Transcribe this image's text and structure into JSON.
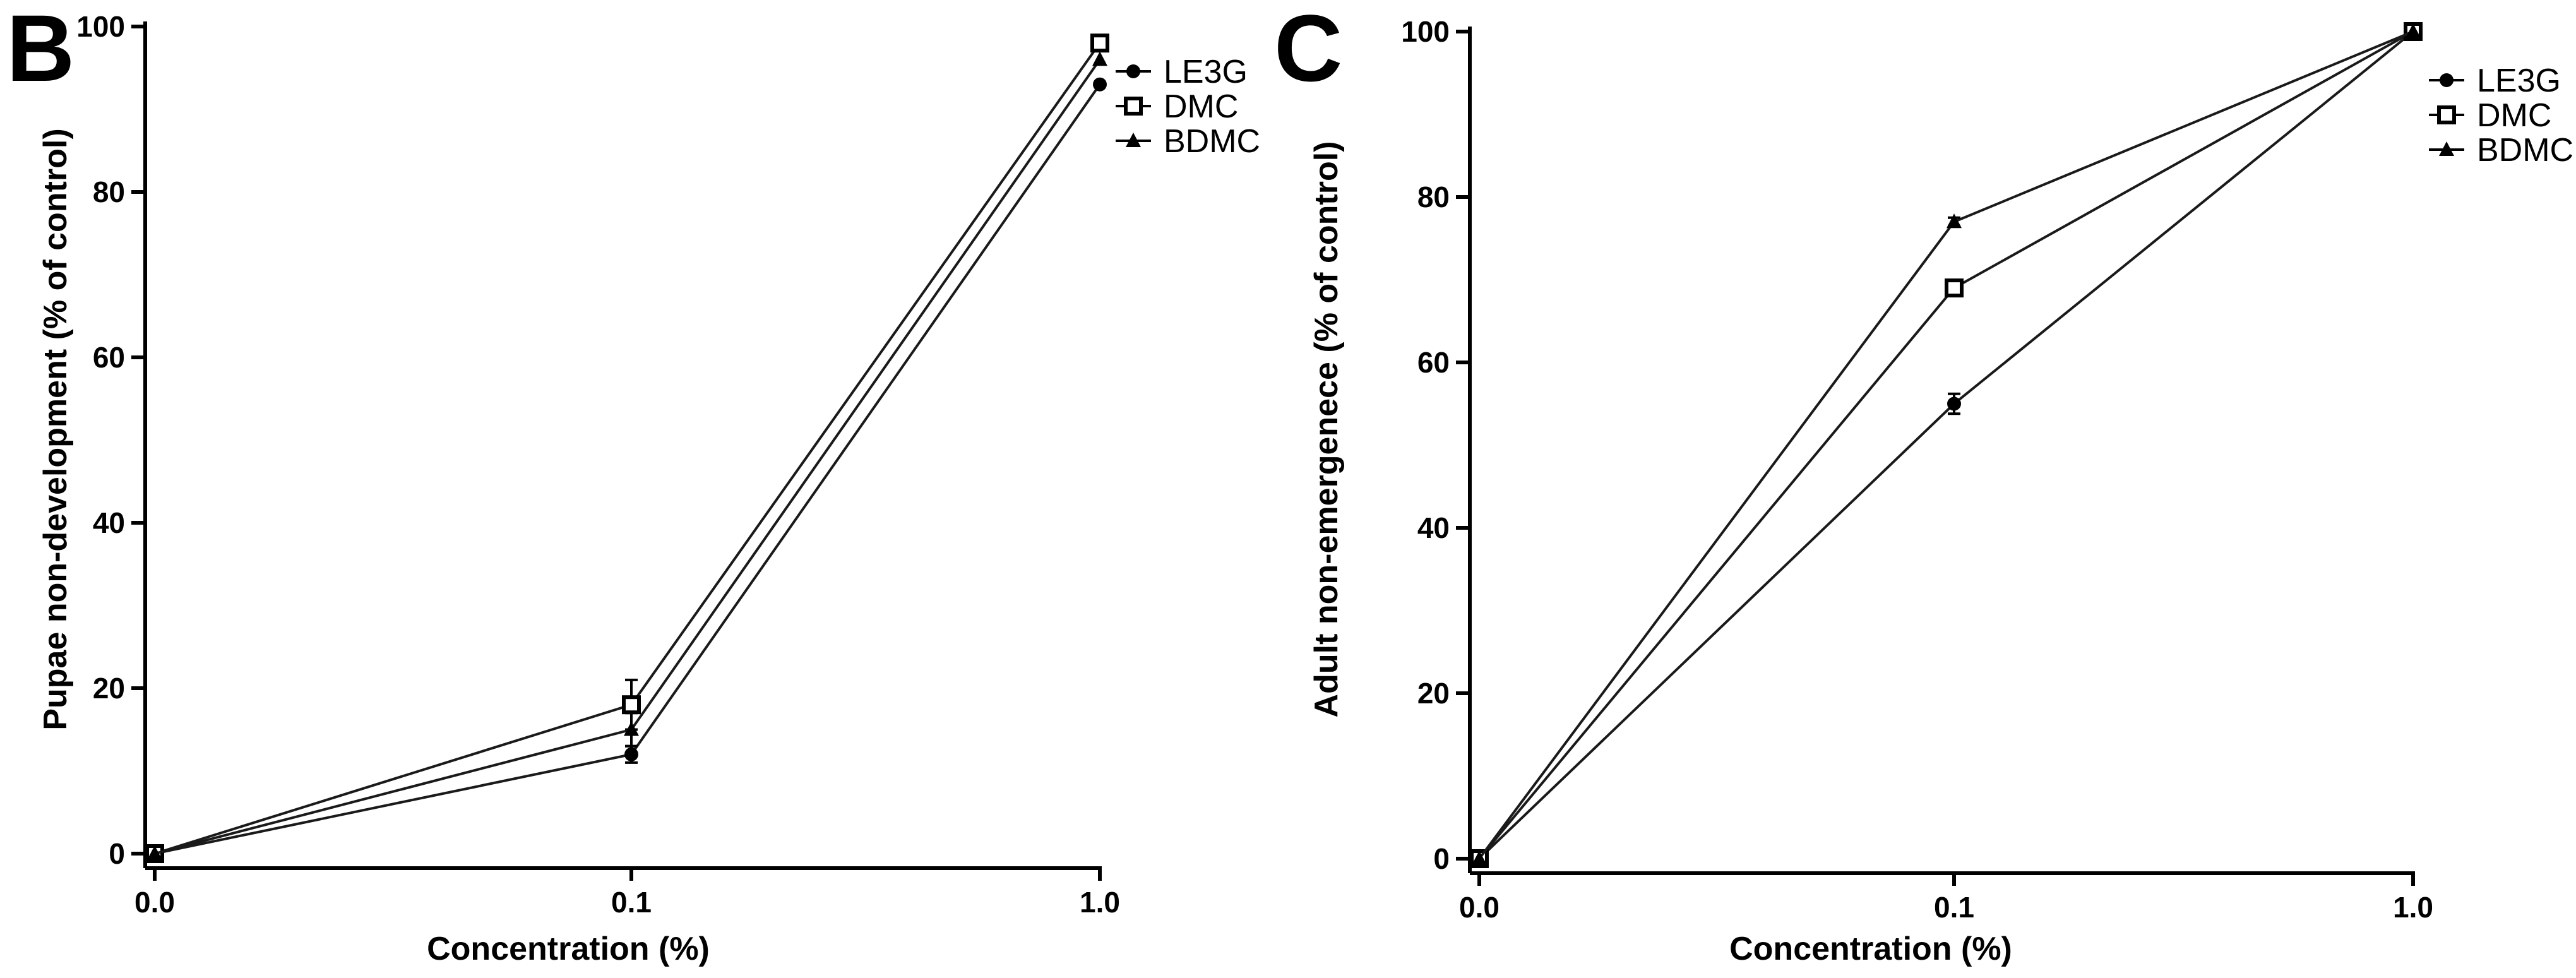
{
  "chart_data": [
    {
      "panel_label": "B",
      "type": "line",
      "categories": [
        "0.0",
        "0.1",
        "1.0"
      ],
      "xlabel": "Concentration (%)",
      "ylabel": "Pupae non-development (% of control)",
      "ylim": [
        0,
        100
      ],
      "yticks": [
        "0",
        "20",
        "40",
        "60",
        "80",
        "100"
      ],
      "legend_position": "top-right",
      "series": [
        {
          "name": "LE3G",
          "marker": "circle",
          "values": [
            0,
            12,
            93
          ],
          "errors": [
            0,
            1,
            0
          ]
        },
        {
          "name": "DMC",
          "marker": "open-square",
          "values": [
            0,
            18,
            98
          ],
          "errors": [
            0,
            3,
            0
          ]
        },
        {
          "name": "BDMC",
          "marker": "triangle",
          "values": [
            0,
            15,
            96
          ],
          "errors": [
            0,
            2,
            0
          ]
        }
      ]
    },
    {
      "panel_label": "C",
      "type": "line",
      "categories": [
        "0.0",
        "0.1",
        "1.0"
      ],
      "xlabel": "Concentration (%)",
      "ylabel": "Adult non-emergenece (% of control)",
      "ylim": [
        0,
        100
      ],
      "yticks": [
        "0",
        "20",
        "40",
        "60",
        "80",
        "100"
      ],
      "legend_position": "top-right",
      "series": [
        {
          "name": "LE3G",
          "marker": "circle",
          "values": [
            0,
            55,
            100
          ],
          "errors": [
            0,
            1.2,
            0
          ]
        },
        {
          "name": "DMC",
          "marker": "open-square",
          "values": [
            0,
            69,
            100
          ],
          "errors": [
            0,
            0.8,
            0
          ]
        },
        {
          "name": "BDMC",
          "marker": "triangle",
          "values": [
            0,
            77,
            100
          ],
          "errors": [
            0,
            0.5,
            0
          ]
        }
      ]
    }
  ]
}
